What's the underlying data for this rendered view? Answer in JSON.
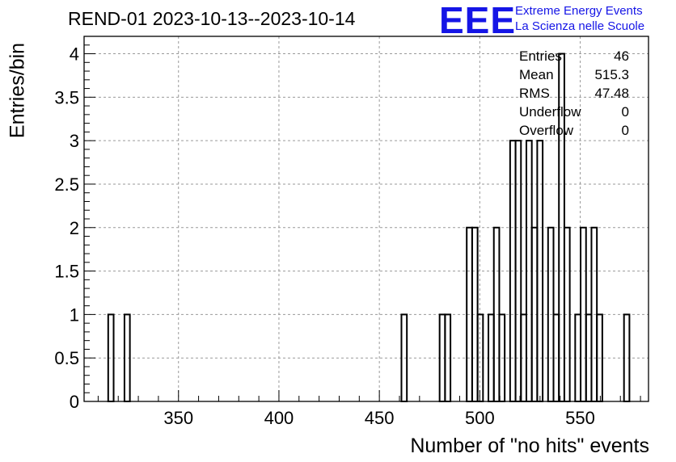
{
  "title": "REND-01 2023-10-13--2023-10-14",
  "logo": {
    "mark": "EEE",
    "line1": "Extreme Energy Events",
    "line2": "La Scienza nelle Scuole"
  },
  "stats": [
    {
      "key": "Entries",
      "value": "46"
    },
    {
      "key": "Mean",
      "value": "515.3"
    },
    {
      "key": "RMS",
      "value": "47.48"
    },
    {
      "key": "Underflow",
      "value": "0"
    },
    {
      "key": "Overflow",
      "value": "0"
    }
  ],
  "chart_data": {
    "type": "bar",
    "style": "step-histogram",
    "xlabel": "Number of \"no hits\" events",
    "ylabel": "Entries/bin",
    "xlim": [
      303,
      584
    ],
    "ylim": [
      0,
      4.2
    ],
    "grid": true,
    "xticks": [
      "350",
      "400",
      "450",
      "500",
      "550"
    ],
    "yticks": [
      "0",
      "0.5",
      "1",
      "1.5",
      "2",
      "2.5",
      "3",
      "3.5",
      "4"
    ],
    "bin_width": 2.7,
    "bins": [
      {
        "x": 315.0,
        "y": 1
      },
      {
        "x": 323.1,
        "y": 1
      },
      {
        "x": 461.0,
        "y": 1
      },
      {
        "x": 480.0,
        "y": 1
      },
      {
        "x": 482.7,
        "y": 1
      },
      {
        "x": 493.5,
        "y": 2
      },
      {
        "x": 496.2,
        "y": 2
      },
      {
        "x": 498.9,
        "y": 1
      },
      {
        "x": 504.3,
        "y": 1
      },
      {
        "x": 507.0,
        "y": 2
      },
      {
        "x": 509.7,
        "y": 1
      },
      {
        "x": 515.1,
        "y": 3
      },
      {
        "x": 517.8,
        "y": 3
      },
      {
        "x": 520.5,
        "y": 1
      },
      {
        "x": 523.2,
        "y": 3
      },
      {
        "x": 525.9,
        "y": 2
      },
      {
        "x": 528.6,
        "y": 3
      },
      {
        "x": 534.0,
        "y": 2
      },
      {
        "x": 536.7,
        "y": 1
      },
      {
        "x": 539.4,
        "y": 4
      },
      {
        "x": 542.1,
        "y": 2
      },
      {
        "x": 547.5,
        "y": 1
      },
      {
        "x": 550.2,
        "y": 2
      },
      {
        "x": 552.9,
        "y": 1
      },
      {
        "x": 555.6,
        "y": 2
      },
      {
        "x": 558.3,
        "y": 1
      },
      {
        "x": 571.8,
        "y": 1
      }
    ]
  }
}
